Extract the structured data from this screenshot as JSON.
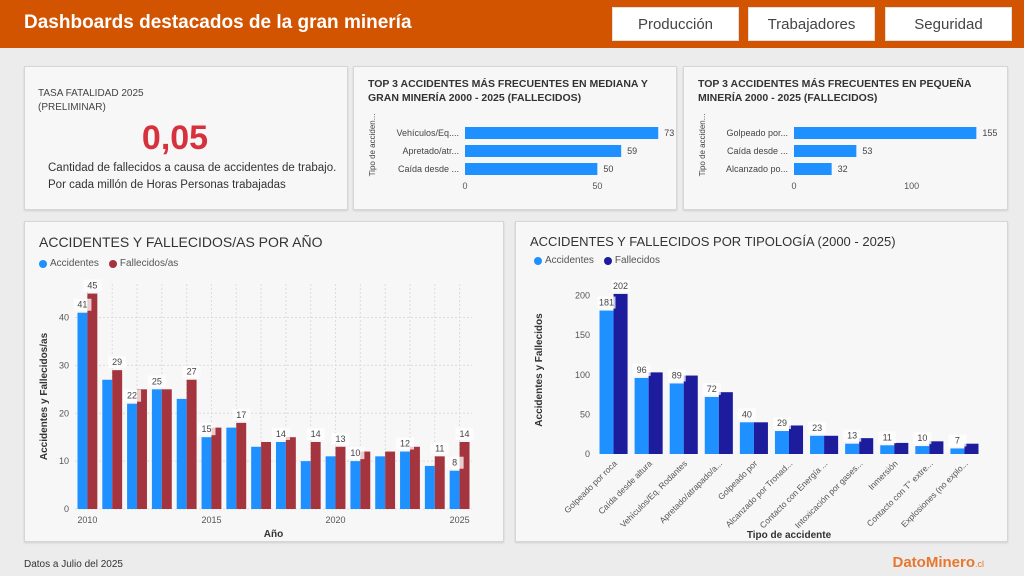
{
  "header": {
    "title": "Dashboards destacados de la gran minería",
    "nav": [
      "Producción",
      "Trabajadores",
      "Seguridad"
    ]
  },
  "kpi": {
    "label": "TASA FATALIDAD 2025 (PRELIMINAR)",
    "value": "0,05",
    "description": "Cantidad de fallecidos a causa de accidentes de trabajo. Por cada millón de Horas Personas trabajadas"
  },
  "footer": {
    "note": "Datos a Julio del 2025",
    "brand": "DatoMinero",
    "brand_suffix": ".cl"
  },
  "colors": {
    "header": "#d35400",
    "accidentes": "#1e90ff",
    "fallecidos_red": "#a4343d",
    "fallecidos_navy": "#1c1c9c",
    "kpi_value": "#d6313c"
  },
  "chart_data": [
    {
      "type": "bar",
      "orientation": "horizontal",
      "title": "TOP 3 ACCIDENTES MÁS FRECUENTES EN MEDIANA Y GRAN MINERÍA 2000 - 2025 (FALLECIDOS)",
      "ylabel": "Tipo de acciden...",
      "categories": [
        "Vehículos/Eq....",
        "Apretado/atr...",
        "Caída desde ..."
      ],
      "values": [
        73,
        59,
        50
      ],
      "xticks": [
        0,
        50
      ],
      "xlim": [
        0,
        85
      ]
    },
    {
      "type": "bar",
      "orientation": "horizontal",
      "title": "TOP 3 ACCIDENTES MÁS FRECUENTES EN PEQUEÑA MINERÍA 2000 - 2025 (FALLECIDOS)",
      "ylabel": "Tipo de acciden...",
      "categories": [
        "Golpeado por...",
        "Caída desde ...",
        "Alcanzado po..."
      ],
      "values": [
        155,
        53,
        32
      ],
      "xticks": [
        0,
        100
      ],
      "xlim": [
        0,
        170
      ]
    },
    {
      "type": "bar",
      "title": "ACCIDENTES Y FALLECIDOS/AS POR AÑO",
      "xlabel": "Año",
      "ylabel": "Accidentes y Fallecidos/as",
      "x": [
        2010,
        2011,
        2012,
        2013,
        2014,
        2015,
        2016,
        2017,
        2018,
        2019,
        2020,
        2021,
        2022,
        2023,
        2024,
        2025
      ],
      "xticks": [
        2010,
        2015,
        2020,
        2025
      ],
      "ylim": [
        0,
        47
      ],
      "yticks": [
        0,
        10,
        20,
        30,
        40
      ],
      "grid": true,
      "legend": "top-left",
      "series": [
        {
          "name": "Accidentes",
          "values": [
            41,
            27,
            22,
            25,
            23,
            15,
            17,
            13,
            14,
            10,
            11,
            10,
            11,
            12,
            9,
            8
          ]
        },
        {
          "name": "Fallecidos/as",
          "values": [
            45,
            29,
            25,
            25,
            27,
            17,
            18,
            14,
            15,
            14,
            13,
            12,
            12,
            13,
            11,
            14
          ]
        }
      ],
      "labels": [
        {
          "x": 2010,
          "series": 0,
          "text": "41"
        },
        {
          "x": 2010,
          "series": 1,
          "text": "45"
        },
        {
          "x": 2011,
          "series": 1,
          "text": "29"
        },
        {
          "x": 2012,
          "series": 0,
          "text": "22"
        },
        {
          "x": 2013,
          "series": 0,
          "text": "25"
        },
        {
          "x": 2014,
          "series": 1,
          "text": "27"
        },
        {
          "x": 2015,
          "series": 0,
          "text": "15"
        },
        {
          "x": 2016,
          "series": 1,
          "text": "17"
        },
        {
          "x": 2018,
          "series": 0,
          "text": "14"
        },
        {
          "x": 2019,
          "series": 1,
          "text": "14"
        },
        {
          "x": 2020,
          "series": 1,
          "text": "13"
        },
        {
          "x": 2021,
          "series": 0,
          "text": "10"
        },
        {
          "x": 2023,
          "series": 0,
          "text": "12"
        },
        {
          "x": 2024,
          "series": 1,
          "text": "11"
        },
        {
          "x": 2025,
          "series": 0,
          "text": "8"
        },
        {
          "x": 2025,
          "series": 1,
          "text": "14"
        }
      ]
    },
    {
      "type": "bar",
      "title": "ACCIDENTES Y FALLECIDOS POR TIPOLOGÍA (2000 - 2025)",
      "xlabel": "Tipo de accidente",
      "ylabel": "Accidentes y Fallecidos",
      "categories": [
        "Golpeado por roca",
        "Caída desde altura",
        "Vehículos/Eq. Rodantes",
        "Apretado/atrapado/a...",
        "Golpeado por",
        "Alcanzado por Tronad...",
        "Contacto con Energía ...",
        "Intoxicación por gases...",
        "Inmersión",
        "Contacto con T° extre...",
        "Explosiones (no explo..."
      ],
      "ylim": [
        0,
        212
      ],
      "yticks": [
        0,
        50,
        100,
        150,
        200
      ],
      "legend": "top-left",
      "series": [
        {
          "name": "Accidentes",
          "values": [
            181,
            96,
            89,
            72,
            40,
            29,
            23,
            13,
            11,
            10,
            7
          ]
        },
        {
          "name": "Fallecidos",
          "values": [
            202,
            103,
            99,
            78,
            40,
            36,
            23,
            20,
            14,
            16,
            13
          ]
        }
      ],
      "labels": [
        {
          "category": 0,
          "series": 0,
          "text": "181"
        },
        {
          "category": 0,
          "series": 1,
          "text": "202"
        },
        {
          "category": 1,
          "series": 0,
          "text": "96"
        },
        {
          "category": 2,
          "series": 0,
          "text": "89"
        },
        {
          "category": 3,
          "series": 0,
          "text": "72"
        },
        {
          "category": 4,
          "series": 0,
          "text": "40"
        },
        {
          "category": 5,
          "series": 0,
          "text": "29"
        },
        {
          "category": 6,
          "series": 0,
          "text": "23"
        },
        {
          "category": 7,
          "series": 0,
          "text": "13"
        },
        {
          "category": 8,
          "series": 0,
          "text": "11"
        },
        {
          "category": 9,
          "series": 0,
          "text": "10"
        },
        {
          "category": 10,
          "series": 0,
          "text": "7"
        }
      ]
    }
  ]
}
